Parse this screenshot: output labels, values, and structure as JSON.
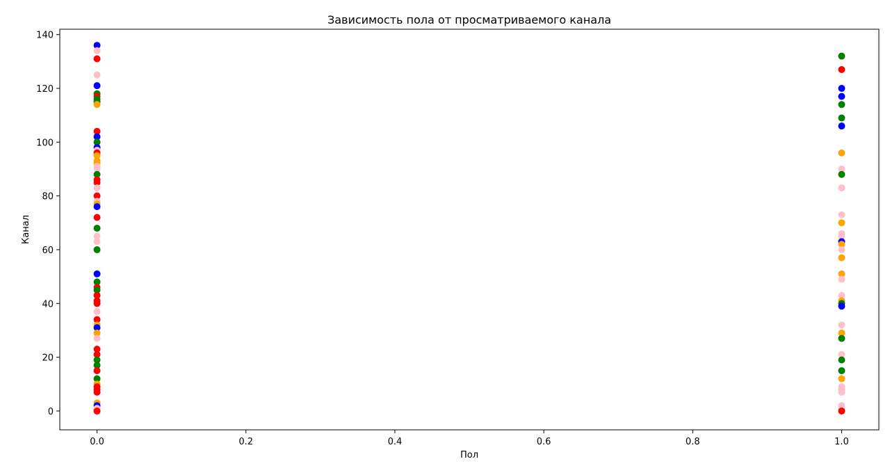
{
  "chart_data": {
    "type": "scatter",
    "title": "Зависимость пола от просматриваемого канала",
    "xlabel": "Пол",
    "ylabel": "Канал",
    "xlim": [
      -0.05,
      1.05
    ],
    "ylim": [
      -7,
      142
    ],
    "x_ticks": [
      0.0,
      0.2,
      0.4,
      0.6,
      0.8,
      1.0
    ],
    "x_tick_labels": [
      "0.0",
      "0.2",
      "0.4",
      "0.6",
      "0.8",
      "1.0"
    ],
    "y_ticks": [
      0,
      20,
      40,
      60,
      80,
      100,
      120,
      140
    ],
    "y_tick_labels": [
      "0",
      "20",
      "40",
      "60",
      "80",
      "100",
      "120",
      "140"
    ],
    "grid": false,
    "points": [
      {
        "x": 0,
        "y": 136,
        "color": "#0000ff"
      },
      {
        "x": 0,
        "y": 134,
        "color": "#ffc0cb"
      },
      {
        "x": 0,
        "y": 131,
        "color": "#ff0000"
      },
      {
        "x": 0,
        "y": 125,
        "color": "#ffc0cb"
      },
      {
        "x": 0,
        "y": 121,
        "color": "#0000ff"
      },
      {
        "x": 0,
        "y": 118,
        "color": "#008000"
      },
      {
        "x": 0,
        "y": 117,
        "color": "#ff0000"
      },
      {
        "x": 0,
        "y": 116,
        "color": "#008000"
      },
      {
        "x": 0,
        "y": 115,
        "color": "#008000"
      },
      {
        "x": 0,
        "y": 114,
        "color": "#ffa500"
      },
      {
        "x": 0,
        "y": 104,
        "color": "#ff0000"
      },
      {
        "x": 0,
        "y": 102,
        "color": "#0000ff"
      },
      {
        "x": 0,
        "y": 100,
        "color": "#008000"
      },
      {
        "x": 0,
        "y": 98,
        "color": "#0000ff"
      },
      {
        "x": 0,
        "y": 97,
        "color": "#ffc0cb"
      },
      {
        "x": 0,
        "y": 96,
        "color": "#ff0000"
      },
      {
        "x": 0,
        "y": 95,
        "color": "#ffa500"
      },
      {
        "x": 0,
        "y": 93,
        "color": "#ffa500"
      },
      {
        "x": 0,
        "y": 92,
        "color": "#ffa500"
      },
      {
        "x": 0,
        "y": 91,
        "color": "#ffc0cb"
      },
      {
        "x": 0,
        "y": 90,
        "color": "#ffc0cb"
      },
      {
        "x": 0,
        "y": 88,
        "color": "#008000"
      },
      {
        "x": 0,
        "y": 86,
        "color": "#ff0000"
      },
      {
        "x": 0,
        "y": 85,
        "color": "#ff0000"
      },
      {
        "x": 0,
        "y": 83,
        "color": "#ffc0cb"
      },
      {
        "x": 0,
        "y": 80,
        "color": "#ff0000"
      },
      {
        "x": 0,
        "y": 78,
        "color": "#ffc0cb"
      },
      {
        "x": 0,
        "y": 77,
        "color": "#ffa500"
      },
      {
        "x": 0,
        "y": 76,
        "color": "#0000ff"
      },
      {
        "x": 0,
        "y": 72,
        "color": "#ff0000"
      },
      {
        "x": 0,
        "y": 68,
        "color": "#008000"
      },
      {
        "x": 0,
        "y": 65,
        "color": "#ffc0cb"
      },
      {
        "x": 0,
        "y": 63,
        "color": "#ffc0cb"
      },
      {
        "x": 0,
        "y": 60,
        "color": "#008000"
      },
      {
        "x": 0,
        "y": 51,
        "color": "#0000ff"
      },
      {
        "x": 0,
        "y": 48,
        "color": "#008000"
      },
      {
        "x": 0,
        "y": 46,
        "color": "#ff0000"
      },
      {
        "x": 0,
        "y": 45,
        "color": "#008000"
      },
      {
        "x": 0,
        "y": 43,
        "color": "#ff0000"
      },
      {
        "x": 0,
        "y": 41,
        "color": "#ff0000"
      },
      {
        "x": 0,
        "y": 40,
        "color": "#ff0000"
      },
      {
        "x": 0,
        "y": 37,
        "color": "#ffc0cb"
      },
      {
        "x": 0,
        "y": 34,
        "color": "#ff0000"
      },
      {
        "x": 0,
        "y": 32,
        "color": "#ffa500"
      },
      {
        "x": 0,
        "y": 31,
        "color": "#0000ff"
      },
      {
        "x": 0,
        "y": 29,
        "color": "#ffa500"
      },
      {
        "x": 0,
        "y": 27,
        "color": "#ffc0cb"
      },
      {
        "x": 0,
        "y": 23,
        "color": "#ff0000"
      },
      {
        "x": 0,
        "y": 21,
        "color": "#ff0000"
      },
      {
        "x": 0,
        "y": 19,
        "color": "#008000"
      },
      {
        "x": 0,
        "y": 17,
        "color": "#008000"
      },
      {
        "x": 0,
        "y": 15,
        "color": "#ff0000"
      },
      {
        "x": 0,
        "y": 12,
        "color": "#008000"
      },
      {
        "x": 0,
        "y": 10,
        "color": "#ffa500"
      },
      {
        "x": 0,
        "y": 9,
        "color": "#ff0000"
      },
      {
        "x": 0,
        "y": 8,
        "color": "#ff0000"
      },
      {
        "x": 0,
        "y": 7,
        "color": "#ff0000"
      },
      {
        "x": 0,
        "y": 3,
        "color": "#ffa500"
      },
      {
        "x": 0,
        "y": 2,
        "color": "#0000ff"
      },
      {
        "x": 0,
        "y": 1,
        "color": "#ffc0cb"
      },
      {
        "x": 0,
        "y": 0,
        "color": "#ff0000"
      },
      {
        "x": 1,
        "y": 132,
        "color": "#008000"
      },
      {
        "x": 1,
        "y": 127,
        "color": "#ff0000"
      },
      {
        "x": 1,
        "y": 120,
        "color": "#0000ff"
      },
      {
        "x": 1,
        "y": 117,
        "color": "#0000ff"
      },
      {
        "x": 1,
        "y": 114,
        "color": "#008000"
      },
      {
        "x": 1,
        "y": 109,
        "color": "#008000"
      },
      {
        "x": 1,
        "y": 106,
        "color": "#0000ff"
      },
      {
        "x": 1,
        "y": 96,
        "color": "#ffa500"
      },
      {
        "x": 1,
        "y": 90,
        "color": "#ffc0cb"
      },
      {
        "x": 1,
        "y": 88,
        "color": "#008000"
      },
      {
        "x": 1,
        "y": 83,
        "color": "#ffc0cb"
      },
      {
        "x": 1,
        "y": 73,
        "color": "#ffc0cb"
      },
      {
        "x": 1,
        "y": 70,
        "color": "#ffa500"
      },
      {
        "x": 1,
        "y": 66,
        "color": "#ffc0cb"
      },
      {
        "x": 1,
        "y": 65,
        "color": "#ffc0cb"
      },
      {
        "x": 1,
        "y": 63,
        "color": "#0000ff"
      },
      {
        "x": 1,
        "y": 62,
        "color": "#ffa500"
      },
      {
        "x": 1,
        "y": 60,
        "color": "#ffc0cb"
      },
      {
        "x": 1,
        "y": 57,
        "color": "#ffa500"
      },
      {
        "x": 1,
        "y": 51,
        "color": "#ffa500"
      },
      {
        "x": 1,
        "y": 49,
        "color": "#ffc0cb"
      },
      {
        "x": 1,
        "y": 43,
        "color": "#ffc0cb"
      },
      {
        "x": 1,
        "y": 41,
        "color": "#ffa500"
      },
      {
        "x": 1,
        "y": 40,
        "color": "#008000"
      },
      {
        "x": 1,
        "y": 39,
        "color": "#0000ff"
      },
      {
        "x": 1,
        "y": 32,
        "color": "#ffc0cb"
      },
      {
        "x": 1,
        "y": 29,
        "color": "#ffa500"
      },
      {
        "x": 1,
        "y": 27,
        "color": "#008000"
      },
      {
        "x": 1,
        "y": 21,
        "color": "#ffc0cb"
      },
      {
        "x": 1,
        "y": 19,
        "color": "#008000"
      },
      {
        "x": 1,
        "y": 15,
        "color": "#008000"
      },
      {
        "x": 1,
        "y": 12,
        "color": "#ffa500"
      },
      {
        "x": 1,
        "y": 9,
        "color": "#ffc0cb"
      },
      {
        "x": 1,
        "y": 8,
        "color": "#ffc0cb"
      },
      {
        "x": 1,
        "y": 7,
        "color": "#ffc0cb"
      },
      {
        "x": 1,
        "y": 2,
        "color": "#ffc0cb"
      },
      {
        "x": 1,
        "y": 1,
        "color": "#ffc0cb"
      },
      {
        "x": 1,
        "y": 0,
        "color": "#ff0000"
      }
    ]
  }
}
